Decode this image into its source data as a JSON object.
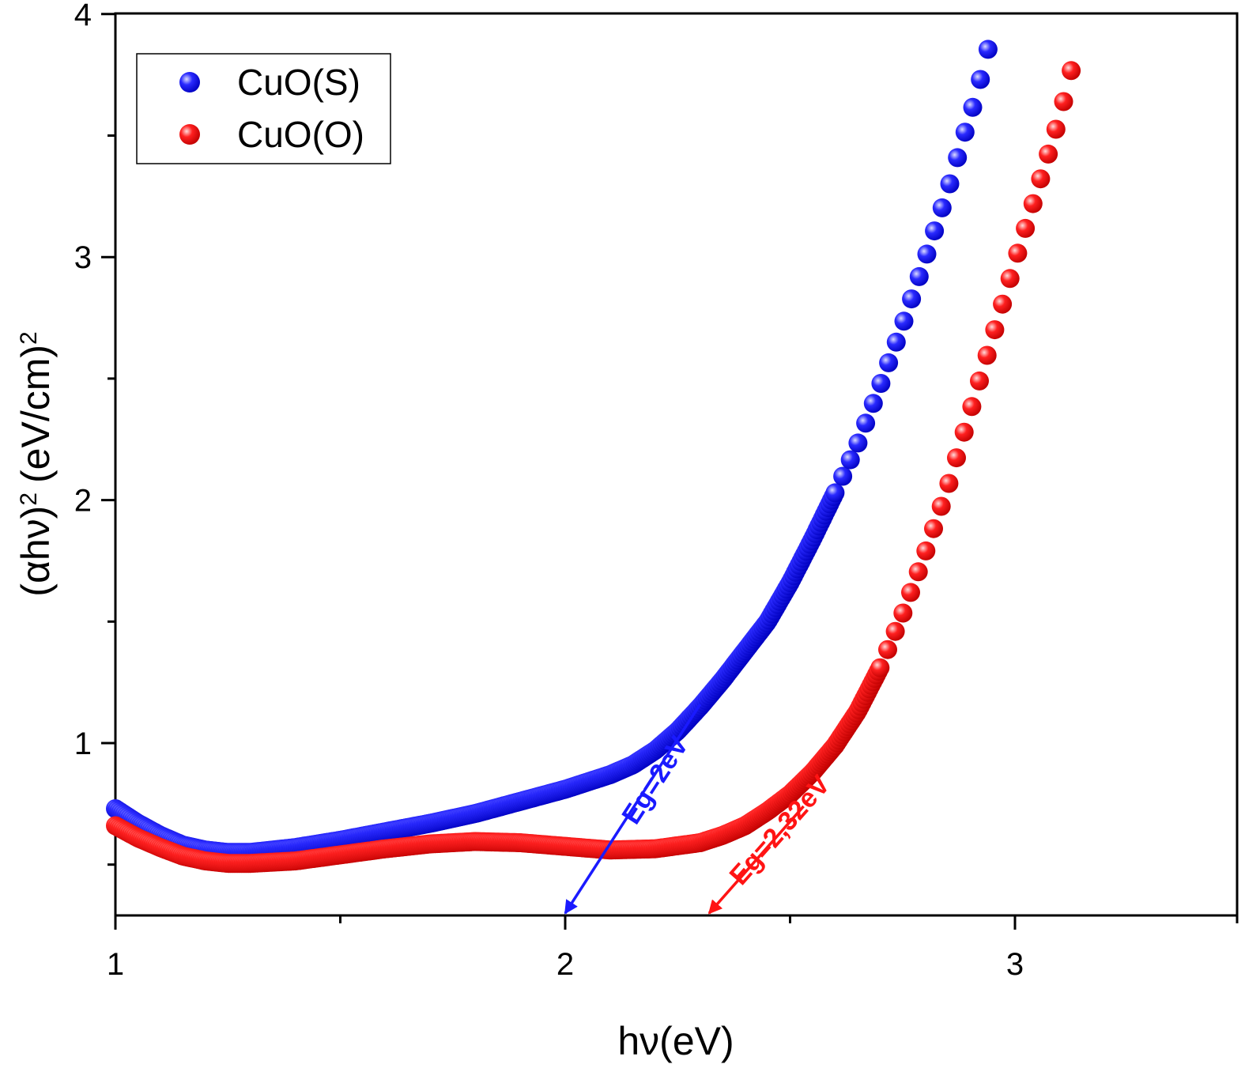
{
  "chart_data": {
    "type": "scatter",
    "xlabel": "hν(eV)",
    "ylabel_main": "(αhν)",
    "ylabel_sup": "2",
    "ylabel_unit": "(eV/cm)",
    "ylabel_unit_sup": "2",
    "xlim": [
      1,
      3.5
    ],
    "ylim": [
      0.3,
      4
    ],
    "x_ticks": [
      1,
      2,
      3
    ],
    "y_ticks": [
      1,
      2,
      3,
      4
    ],
    "x_minor_ticks": [
      1.5,
      2.5,
      3.5
    ],
    "y_minor_ticks": [
      0.5,
      1.5,
      2.5,
      3.5
    ],
    "grid": false,
    "legend_position": "top-left",
    "series": [
      {
        "name": "CuO(S)",
        "color": "#1a1aff",
        "x_range": [
          1.0,
          2.95
        ],
        "dense_until": 2.6,
        "knots": [
          [
            1.0,
            0.73
          ],
          [
            1.05,
            0.67
          ],
          [
            1.1,
            0.62
          ],
          [
            1.15,
            0.58
          ],
          [
            1.2,
            0.56
          ],
          [
            1.25,
            0.55
          ],
          [
            1.3,
            0.55
          ],
          [
            1.4,
            0.57
          ],
          [
            1.5,
            0.6
          ],
          [
            1.6,
            0.635
          ],
          [
            1.7,
            0.67
          ],
          [
            1.8,
            0.71
          ],
          [
            1.9,
            0.76
          ],
          [
            2.0,
            0.81
          ],
          [
            2.1,
            0.87
          ],
          [
            2.15,
            0.91
          ],
          [
            2.2,
            0.97
          ],
          [
            2.25,
            1.05
          ],
          [
            2.3,
            1.15
          ],
          [
            2.35,
            1.26
          ],
          [
            2.4,
            1.38
          ],
          [
            2.45,
            1.5
          ],
          [
            2.5,
            1.66
          ],
          [
            2.55,
            1.84
          ],
          [
            2.6,
            2.03
          ],
          [
            2.65,
            2.23
          ],
          [
            2.7,
            2.47
          ],
          [
            2.75,
            2.72
          ],
          [
            2.8,
            2.99
          ],
          [
            2.85,
            3.27
          ],
          [
            2.88,
            3.46
          ],
          [
            2.91,
            3.64
          ],
          [
            2.93,
            3.78
          ],
          [
            2.95,
            3.93
          ]
        ]
      },
      {
        "name": "CuO(O)",
        "color": "#ff1414",
        "x_range": [
          1.0,
          3.14
        ],
        "dense_until": 2.7,
        "knots": [
          [
            1.0,
            0.66
          ],
          [
            1.05,
            0.61
          ],
          [
            1.1,
            0.57
          ],
          [
            1.15,
            0.535
          ],
          [
            1.2,
            0.515
          ],
          [
            1.25,
            0.505
          ],
          [
            1.3,
            0.505
          ],
          [
            1.4,
            0.515
          ],
          [
            1.5,
            0.54
          ],
          [
            1.6,
            0.565
          ],
          [
            1.7,
            0.585
          ],
          [
            1.8,
            0.595
          ],
          [
            1.9,
            0.59
          ],
          [
            2.0,
            0.575
          ],
          [
            2.1,
            0.56
          ],
          [
            2.2,
            0.565
          ],
          [
            2.3,
            0.59
          ],
          [
            2.35,
            0.62
          ],
          [
            2.4,
            0.66
          ],
          [
            2.45,
            0.72
          ],
          [
            2.5,
            0.79
          ],
          [
            2.55,
            0.88
          ],
          [
            2.6,
            0.99
          ],
          [
            2.65,
            1.13
          ],
          [
            2.7,
            1.31
          ],
          [
            2.75,
            1.53
          ],
          [
            2.8,
            1.78
          ],
          [
            2.85,
            2.05
          ],
          [
            2.9,
            2.36
          ],
          [
            2.95,
            2.67
          ],
          [
            3.0,
            2.98
          ],
          [
            3.05,
            3.28
          ],
          [
            3.1,
            3.58
          ],
          [
            3.14,
            3.88
          ]
        ]
      }
    ],
    "annotations": [
      {
        "text": "Eg=2eV",
        "color": "#1a1aff",
        "arrow_from": [
          2.3,
          1.16
        ],
        "arrow_to": [
          2.0,
          0.3
        ]
      },
      {
        "text": "Eg=2,32eV",
        "color": "#ff1414",
        "arrow_from": [
          2.53,
          0.74
        ],
        "arrow_to": [
          2.32,
          0.3
        ]
      }
    ]
  }
}
